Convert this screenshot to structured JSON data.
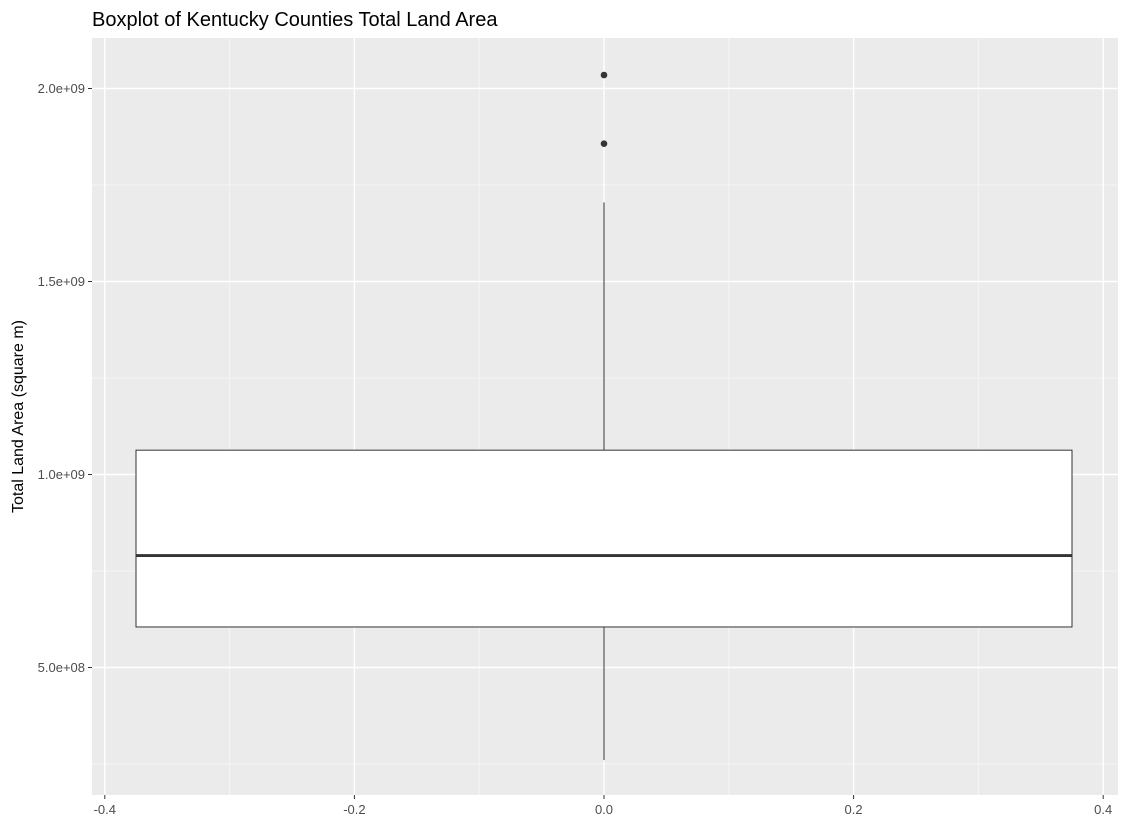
{
  "chart_data": {
    "type": "boxplot",
    "title": "Boxplot of Kentucky Counties Total Land Area",
    "xlabel": "",
    "ylabel": "Total Land Area (square m)",
    "xlim": [
      -0.4,
      0.4
    ],
    "ylim": [
      200000000,
      2150000000
    ],
    "x_ticks": [
      {
        "value": -0.4,
        "label": "-0.4"
      },
      {
        "value": -0.2,
        "label": "-0.2"
      },
      {
        "value": 0.0,
        "label": "0.0"
      },
      {
        "value": 0.2,
        "label": "0.2"
      },
      {
        "value": 0.4,
        "label": "0.4"
      }
    ],
    "y_ticks": [
      {
        "value": 500000000,
        "label": "5.0e+08"
      },
      {
        "value": 1000000000,
        "label": "1.0e+09"
      },
      {
        "value": 1500000000,
        "label": "1.5e+09"
      },
      {
        "value": 2000000000,
        "label": "2.0e+09"
      }
    ],
    "grid": true,
    "box": {
      "x_center": 0.0,
      "x_left": -0.375,
      "x_right": 0.375,
      "lower_whisker": 260000000,
      "q1": 605000000,
      "median": 790000000,
      "q3": 1063000000,
      "upper_whisker": 1705000000,
      "outliers": [
        1857000000,
        2035000000
      ]
    },
    "colors": {
      "panel_background": "#ebebeb",
      "grid_major": "#ffffff",
      "grid_minor": "#f5f5f5",
      "box_fill": "#ffffff",
      "box_line": "#333333",
      "outlier": "#333333"
    }
  }
}
